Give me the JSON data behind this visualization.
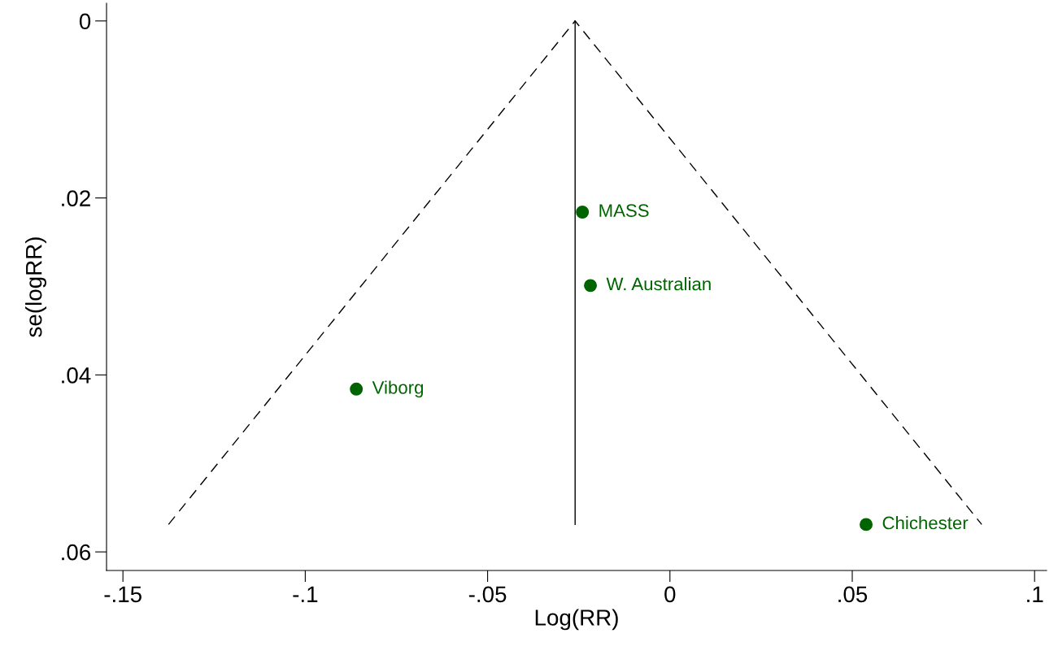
{
  "chart_data": {
    "type": "scatter",
    "xlabel": "Log(RR)",
    "ylabel": "se(logRR)",
    "xlim": [
      -0.1545,
      0.1033
    ],
    "ylim": [
      0.0621,
      -0.002
    ],
    "xticks": [
      {
        "value": -0.15,
        "label": "-.15"
      },
      {
        "value": -0.1,
        "label": "-.1"
      },
      {
        "value": -0.05,
        "label": "-.05"
      },
      0,
      {
        "value": 0.05,
        "label": ".05"
      },
      {
        "value": 0.1,
        "label": ".1"
      }
    ],
    "yticks": [
      0,
      {
        "value": 0.02,
        "label": ".02"
      },
      {
        "value": 0.04,
        "label": ".04"
      },
      {
        "value": 0.06,
        "label": ".06"
      }
    ],
    "grid": false,
    "legend": false,
    "series": [
      {
        "color": "#006400",
        "marker": "circle",
        "x": [
          -0.086,
          -0.024,
          -0.0218,
          0.0538
        ],
        "values": [
          0.0416,
          0.0216,
          0.0299,
          0.0569
        ]
      },
      {
        "type": "line",
        "color": "#000000",
        "line_style": "dashed",
        "marker": "none",
        "x": [
          -0.1375,
          -0.026,
          0.0855
        ],
        "values": [
          0.0569,
          0,
          0.0569
        ]
      },
      {
        "type": "line",
        "color": "#000000",
        "line_style": "solid",
        "marker": "none",
        "x": [
          -0.026,
          -0.026
        ],
        "values": [
          0,
          0.0569
        ]
      }
    ],
    "annotations": [
      {
        "text": "Viborg",
        "x": -0.086,
        "y": 0.0416
      },
      {
        "text": "MASS",
        "x": -0.024,
        "y": 0.0216
      },
      {
        "text": "W. Australian",
        "x": -0.0218,
        "y": 0.0299
      },
      {
        "text": "Chichester",
        "x": 0.0538,
        "y": 0.0569
      }
    ]
  }
}
